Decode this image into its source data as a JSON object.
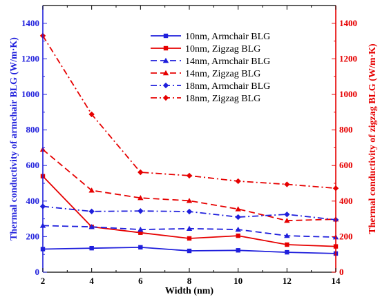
{
  "chart_data": {
    "type": "line",
    "xlabel": "Width (nm)",
    "ylabel_left": "Thermal conductivity of armchair BLG  (W/m·K)",
    "ylabel_right": "Thermal conductivity of zigzag BLG  (W/m·K)",
    "xlim": [
      2,
      14
    ],
    "ylim_left": [
      0,
      1500
    ],
    "ylim_right": [
      0,
      1500
    ],
    "x_ticks": [
      2,
      4,
      6,
      8,
      10,
      12,
      14
    ],
    "y_ticks": [
      0,
      200,
      400,
      600,
      800,
      1000,
      1200,
      1400
    ],
    "legend_position": "top-right",
    "grid": false,
    "colors": {
      "left_axis": "#1f1fdc",
      "right_axis": "#e60000",
      "blue": "#1f1fdc",
      "red": "#e60000"
    },
    "x": [
      2,
      4,
      6,
      8,
      10,
      12,
      14
    ],
    "series": [
      {
        "name": "10nm, Armchair BLG",
        "values": [
          130,
          135,
          140,
          120,
          123,
          112,
          105
        ],
        "color": "#1f1fdc",
        "dash": "solid",
        "marker": "square"
      },
      {
        "name": "10nm, Zigzag BLG",
        "values": [
          540,
          255,
          222,
          190,
          205,
          155,
          145
        ],
        "color": "#e60000",
        "dash": "solid",
        "marker": "square"
      },
      {
        "name": "14nm, Armchair BLG",
        "values": [
          262,
          255,
          240,
          245,
          240,
          205,
          197
        ],
        "color": "#1f1fdc",
        "dash": "dash",
        "marker": "triangle"
      },
      {
        "name": "14nm, Zigzag BLG",
        "values": [
          690,
          460,
          418,
          402,
          355,
          290,
          298
        ],
        "color": "#e60000",
        "dash": "dash",
        "marker": "triangle"
      },
      {
        "name": "18nm, Armchair BLG",
        "values": [
          370,
          342,
          344,
          341,
          310,
          325,
          295
        ],
        "color": "#1f1fdc",
        "dash": "dashdot",
        "marker": "diamond"
      },
      {
        "name": "18nm, Zigzag BLG",
        "values": [
          1330,
          888,
          562,
          543,
          512,
          494,
          472
        ],
        "color": "#e60000",
        "dash": "dashdot",
        "marker": "diamond"
      }
    ]
  }
}
